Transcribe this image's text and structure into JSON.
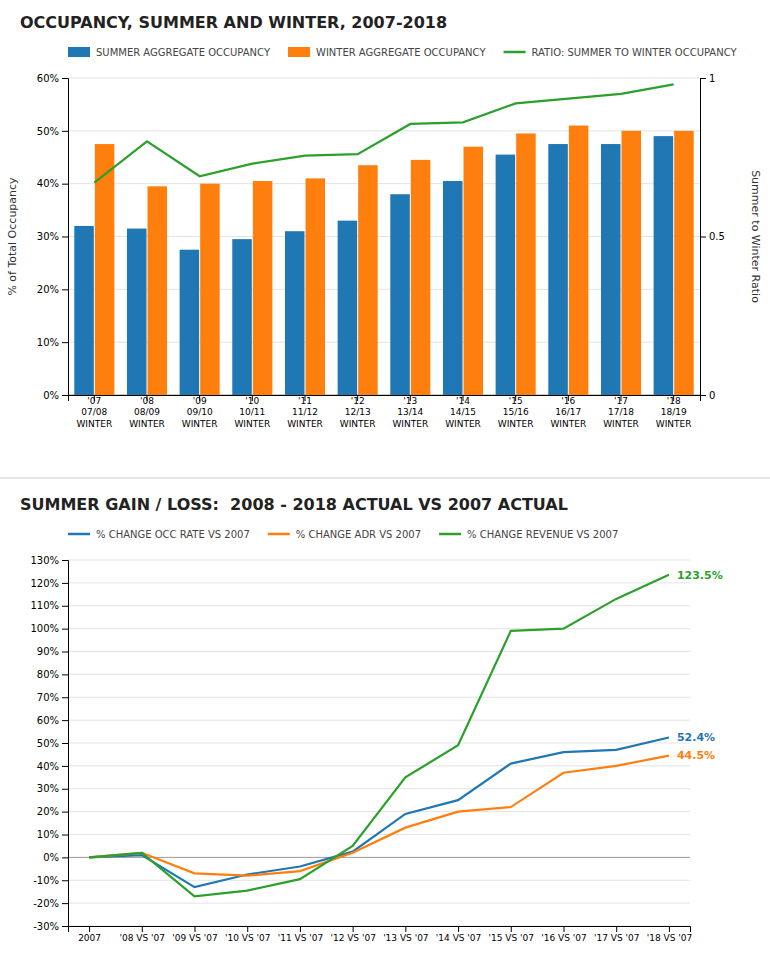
{
  "chart_data": [
    {
      "type": "bar",
      "title": "OCCUPANCY, SUMMER AND WINTER, 2007-2018",
      "categories": [
        [
          "'07",
          "07/08",
          "WINTER"
        ],
        [
          "'08",
          "08/09",
          "WINTER"
        ],
        [
          "'09",
          "09/10",
          "WINTER"
        ],
        [
          "'10",
          "10/11",
          "WINTER"
        ],
        [
          "'11",
          "11/12",
          "WINTER"
        ],
        [
          "'12",
          "12/13",
          "WINTER"
        ],
        [
          "'13",
          "13/14",
          "WINTER"
        ],
        [
          "'14",
          "14/15",
          "WINTER"
        ],
        [
          "'15",
          "15/16",
          "WINTER"
        ],
        [
          "'16",
          "16/17",
          "WINTER"
        ],
        [
          "'17",
          "17/18",
          "WINTER"
        ],
        [
          "'18",
          "18/19",
          "WINTER"
        ]
      ],
      "series": [
        {
          "name": "SUMMER AGGREGATE OCCUPANCY",
          "type": "bar",
          "values": [
            32,
            31.5,
            27.5,
            29.5,
            31,
            33,
            38,
            40.5,
            45.5,
            47.5,
            47.5,
            49
          ]
        },
        {
          "name": "WINTER AGGREGATE OCCUPANCY",
          "type": "bar",
          "values": [
            47.5,
            39.5,
            40,
            40.5,
            41,
            43.5,
            44.5,
            47,
            49.5,
            51,
            50,
            50
          ]
        },
        {
          "name": "RATIO: SUMMER TO WINTER OCCUPANCY",
          "type": "line",
          "axis": "y2",
          "values": [
            0.67,
            0.8,
            0.69,
            0.73,
            0.755,
            0.76,
            0.855,
            0.86,
            0.92,
            0.935,
            0.95,
            0.98
          ]
        }
      ],
      "ylabel": "% of Total Occupancy",
      "y2label": "Summer to Winter Ratio",
      "ylim": [
        0,
        60
      ],
      "yticks": [
        {
          "value": 0,
          "label": "0%"
        },
        {
          "value": 10,
          "label": "10%"
        },
        {
          "value": 20,
          "label": "20%"
        },
        {
          "value": 30,
          "label": "30%"
        },
        {
          "value": 40,
          "label": "40%"
        },
        {
          "value": 50,
          "label": "50%"
        },
        {
          "value": 60,
          "label": "60%"
        }
      ],
      "y2lim": [
        0,
        1
      ],
      "y2ticks": [
        0,
        0.5,
        1
      ],
      "grid": true,
      "legend": "top-left"
    },
    {
      "type": "line",
      "title": "SUMMER GAIN / LOSS:  2008 - 2018 ACTUAL VS 2007 ACTUAL",
      "categories": [
        "2007",
        "'08 VS '07",
        "'09 VS '07",
        "'10 VS '07",
        "'11 VS '07",
        "'12 VS '07",
        "'13 VS '07",
        "'14 VS '07",
        "'15 VS '07",
        "'16 VS '07",
        "'17 VS '07",
        "'18 VS '07"
      ],
      "series": [
        {
          "name": "% CHANGE OCC RATE VS 2007",
          "values": [
            0,
            1,
            -13,
            -7.5,
            -4,
            2.5,
            19,
            25,
            41,
            46,
            47,
            52.4
          ],
          "end_label": "52.4%"
        },
        {
          "name": "% CHANGE ADR VS 2007",
          "values": [
            0,
            2,
            -7,
            -8,
            -6,
            2,
            13,
            20,
            22,
            37,
            40,
            44.5
          ],
          "end_label": "44.5%"
        },
        {
          "name": "% CHANGE REVENUE VS 2007",
          "values": [
            0,
            2,
            -17,
            -14.5,
            -9.5,
            5,
            35,
            49,
            99,
            100,
            113,
            123.5
          ],
          "end_label": "123.5%"
        }
      ],
      "ylim": [
        -30,
        130
      ],
      "yticks": [
        {
          "value": -30,
          "label": "-30%"
        },
        {
          "value": -20,
          "label": "-20%"
        },
        {
          "value": -10,
          "label": "-10%"
        },
        {
          "value": 0,
          "label": "0%"
        },
        {
          "value": 10,
          "label": "10%"
        },
        {
          "value": 20,
          "label": "20%"
        },
        {
          "value": 30,
          "label": "30%"
        },
        {
          "value": 40,
          "label": "40%"
        },
        {
          "value": 50,
          "label": "50%"
        },
        {
          "value": 60,
          "label": "60%"
        },
        {
          "value": 70,
          "label": "70%"
        },
        {
          "value": 80,
          "label": "80%"
        },
        {
          "value": 90,
          "label": "90%"
        },
        {
          "value": 100,
          "label": "100%"
        },
        {
          "value": 110,
          "label": "110%"
        },
        {
          "value": 120,
          "label": "120%"
        },
        {
          "value": 130,
          "label": "130%"
        }
      ],
      "grid": true,
      "legend": "top-left"
    }
  ]
}
